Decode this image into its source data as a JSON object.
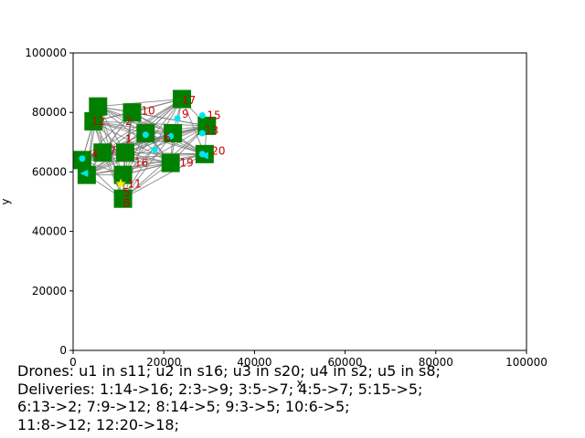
{
  "chart_data": {
    "type": "scatter",
    "xlabel": "x",
    "ylabel": "y",
    "xlim": [
      0,
      100000
    ],
    "ylim": [
      0,
      100000
    ],
    "xticks": [
      "0",
      "20000",
      "40000",
      "60000",
      "80000",
      "100000"
    ],
    "yticks": [
      "0",
      "20000",
      "40000",
      "60000",
      "80000",
      "100000"
    ],
    "grid": false,
    "stations": [
      {
        "x": 4500,
        "y": 77000
      },
      {
        "x": 5500,
        "y": 82000
      },
      {
        "x": 2000,
        "y": 64000
      },
      {
        "x": 3000,
        "y": 59000
      },
      {
        "x": 6500,
        "y": 66500
      },
      {
        "x": 11000,
        "y": 59000
      },
      {
        "x": 11000,
        "y": 51000
      },
      {
        "x": 13000,
        "y": 80000
      },
      {
        "x": 16000,
        "y": 73000
      },
      {
        "x": 21500,
        "y": 63000
      },
      {
        "x": 24000,
        "y": 84500
      },
      {
        "x": 29000,
        "y": 66000
      },
      {
        "x": 29500,
        "y": 75500
      },
      {
        "x": 22000,
        "y": 73000
      },
      {
        "x": 11500,
        "y": 66500
      }
    ],
    "node_labels": [
      {
        "text": "1",
        "x": 11500,
        "y": 71000
      },
      {
        "text": "2",
        "x": 11500,
        "y": 77000
      },
      {
        "text": "4",
        "x": 4000,
        "y": 66000
      },
      {
        "text": "5",
        "x": 11000,
        "y": 53000
      },
      {
        "text": "6",
        "x": 20000,
        "y": 71500
      },
      {
        "text": "7",
        "x": 8000,
        "y": 67000
      },
      {
        "text": "8",
        "x": 11000,
        "y": 49500
      },
      {
        "text": "9",
        "x": 24000,
        "y": 79500
      },
      {
        "text": "10",
        "x": 15000,
        "y": 80500
      },
      {
        "text": "11",
        "x": 12000,
        "y": 56000
      },
      {
        "text": "12",
        "x": 4000,
        "y": 77000
      },
      {
        "text": "13",
        "x": 29000,
        "y": 74000
      },
      {
        "text": "15",
        "x": 29500,
        "y": 79000
      },
      {
        "text": "16",
        "x": 13500,
        "y": 63000
      },
      {
        "text": "17",
        "x": 24000,
        "y": 84000
      },
      {
        "text": "19",
        "x": 23500,
        "y": 63000
      },
      {
        "text": "20",
        "x": 30500,
        "y": 67000
      }
    ],
    "drones": [
      {
        "id": "u1",
        "x": 2000,
        "y": 64500
      },
      {
        "id": "u2",
        "x": 18000,
        "y": 67500
      },
      {
        "id": "u3",
        "x": 28500,
        "y": 66000
      },
      {
        "id": "u4",
        "x": 21500,
        "y": 72000
      },
      {
        "id": "u5",
        "x": 16000,
        "y": 72500
      },
      {
        "id": "u6",
        "x": 23000,
        "y": 78000
      },
      {
        "id": "u7",
        "x": 28500,
        "y": 79000
      },
      {
        "id": "u8",
        "x": 28500,
        "y": 73000
      }
    ],
    "markers": [
      {
        "kind": "cyan-triangle",
        "x": 2500,
        "y": 59500
      },
      {
        "kind": "cyan-triangle",
        "x": 29000,
        "y": 65500
      },
      {
        "kind": "yellow-star",
        "x": 10500,
        "y": 56000
      }
    ],
    "colors": {
      "station": "#008000",
      "edge": "#808080",
      "drone": "#00e5ee",
      "label": "#cc0000",
      "star": "#ffee00",
      "axis": "#000000"
    }
  },
  "caption": {
    "line1": "Drones: u1 in s11; u2 in s16; u3 in s20; u4 in s2; u5 in s8;",
    "line2": "Deliveries: 1:14->16; 2:3->9; 3:5->7; 4:5->7; 5:15->5;",
    "line3": "6:13->2; 7:9->12; 8:14->5; 9:3->5; 10:6->5;",
    "line4": "11:8->12; 12:20->18;"
  }
}
